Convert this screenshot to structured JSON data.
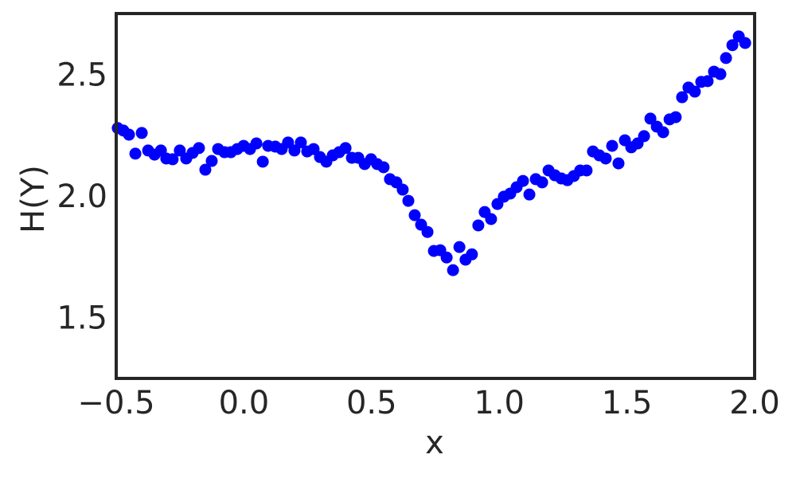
{
  "chart_data": {
    "type": "scatter",
    "xlabel": "x",
    "ylabel": "H(Y)",
    "color": "#0000ff",
    "grid": false,
    "xlim": [
      -0.5,
      2.0
    ],
    "ylim": [
      1.26,
      2.76
    ],
    "xticks": [
      {
        "value": -0.5,
        "label": "−0.5"
      },
      {
        "value": 0,
        "label": "0.0"
      },
      0.5,
      {
        "value": 1,
        "label": "1.0"
      },
      1.5,
      {
        "value": 2,
        "label": "2.0"
      }
    ],
    "yticks": [
      1.5,
      {
        "value": 2,
        "label": "2.0"
      },
      2.5
    ],
    "x": [
      -0.494,
      -0.472,
      -0.45,
      -0.425,
      -0.4,
      -0.375,
      -0.35,
      -0.325,
      -0.304,
      -0.279,
      -0.251,
      -0.226,
      -0.201,
      -0.176,
      -0.151,
      -0.126,
      -0.101,
      -0.076,
      -0.051,
      -0.026,
      -0.001,
      0.024,
      0.049,
      0.074,
      0.095,
      0.123,
      0.148,
      0.173,
      0.198,
      0.223,
      0.248,
      0.273,
      0.298,
      0.323,
      0.348,
      0.373,
      0.398,
      0.423,
      0.448,
      0.473,
      0.498,
      0.522,
      0.547,
      0.572,
      0.597,
      0.622,
      0.644,
      0.669,
      0.694,
      0.719,
      0.744,
      0.769,
      0.794,
      0.819,
      0.844,
      0.868,
      0.893,
      0.918,
      0.943,
      0.968,
      0.993,
      1.018,
      1.043,
      1.068,
      1.093,
      1.118,
      1.143,
      1.168,
      1.193,
      1.218,
      1.243,
      1.267,
      1.292,
      1.317,
      1.342,
      1.367,
      1.392,
      1.417,
      1.442,
      1.467,
      1.492,
      1.517,
      1.542,
      1.567,
      1.592,
      1.617,
      1.642,
      1.667,
      1.691,
      1.716,
      1.741,
      1.766,
      1.791,
      1.816,
      1.841,
      1.866,
      1.888,
      1.913,
      1.938,
      1.963
    ],
    "values": [
      2.289,
      2.279,
      2.262,
      2.184,
      2.269,
      2.197,
      2.18,
      2.197,
      2.164,
      2.161,
      2.197,
      2.164,
      2.187,
      2.207,
      2.118,
      2.154,
      2.203,
      2.19,
      2.19,
      2.203,
      2.216,
      2.203,
      2.226,
      2.151,
      2.216,
      2.213,
      2.203,
      2.23,
      2.197,
      2.23,
      2.193,
      2.203,
      2.17,
      2.151,
      2.177,
      2.19,
      2.207,
      2.167,
      2.167,
      2.141,
      2.161,
      2.141,
      2.128,
      2.079,
      2.066,
      2.036,
      1.99,
      1.931,
      1.892,
      1.862,
      1.784,
      1.787,
      1.757,
      1.705,
      1.8,
      1.748,
      1.77,
      1.889,
      1.944,
      1.915,
      1.977,
      2.007,
      2.02,
      2.046,
      2.072,
      2.016,
      2.079,
      2.066,
      2.115,
      2.095,
      2.082,
      2.075,
      2.092,
      2.115,
      2.115,
      2.193,
      2.177,
      2.164,
      2.216,
      2.144,
      2.239,
      2.21,
      2.226,
      2.256,
      2.328,
      2.295,
      2.272,
      2.325,
      2.334,
      2.416,
      2.456,
      2.439,
      2.479,
      2.482,
      2.521,
      2.511,
      2.577,
      2.63,
      2.666,
      2.639
    ]
  }
}
